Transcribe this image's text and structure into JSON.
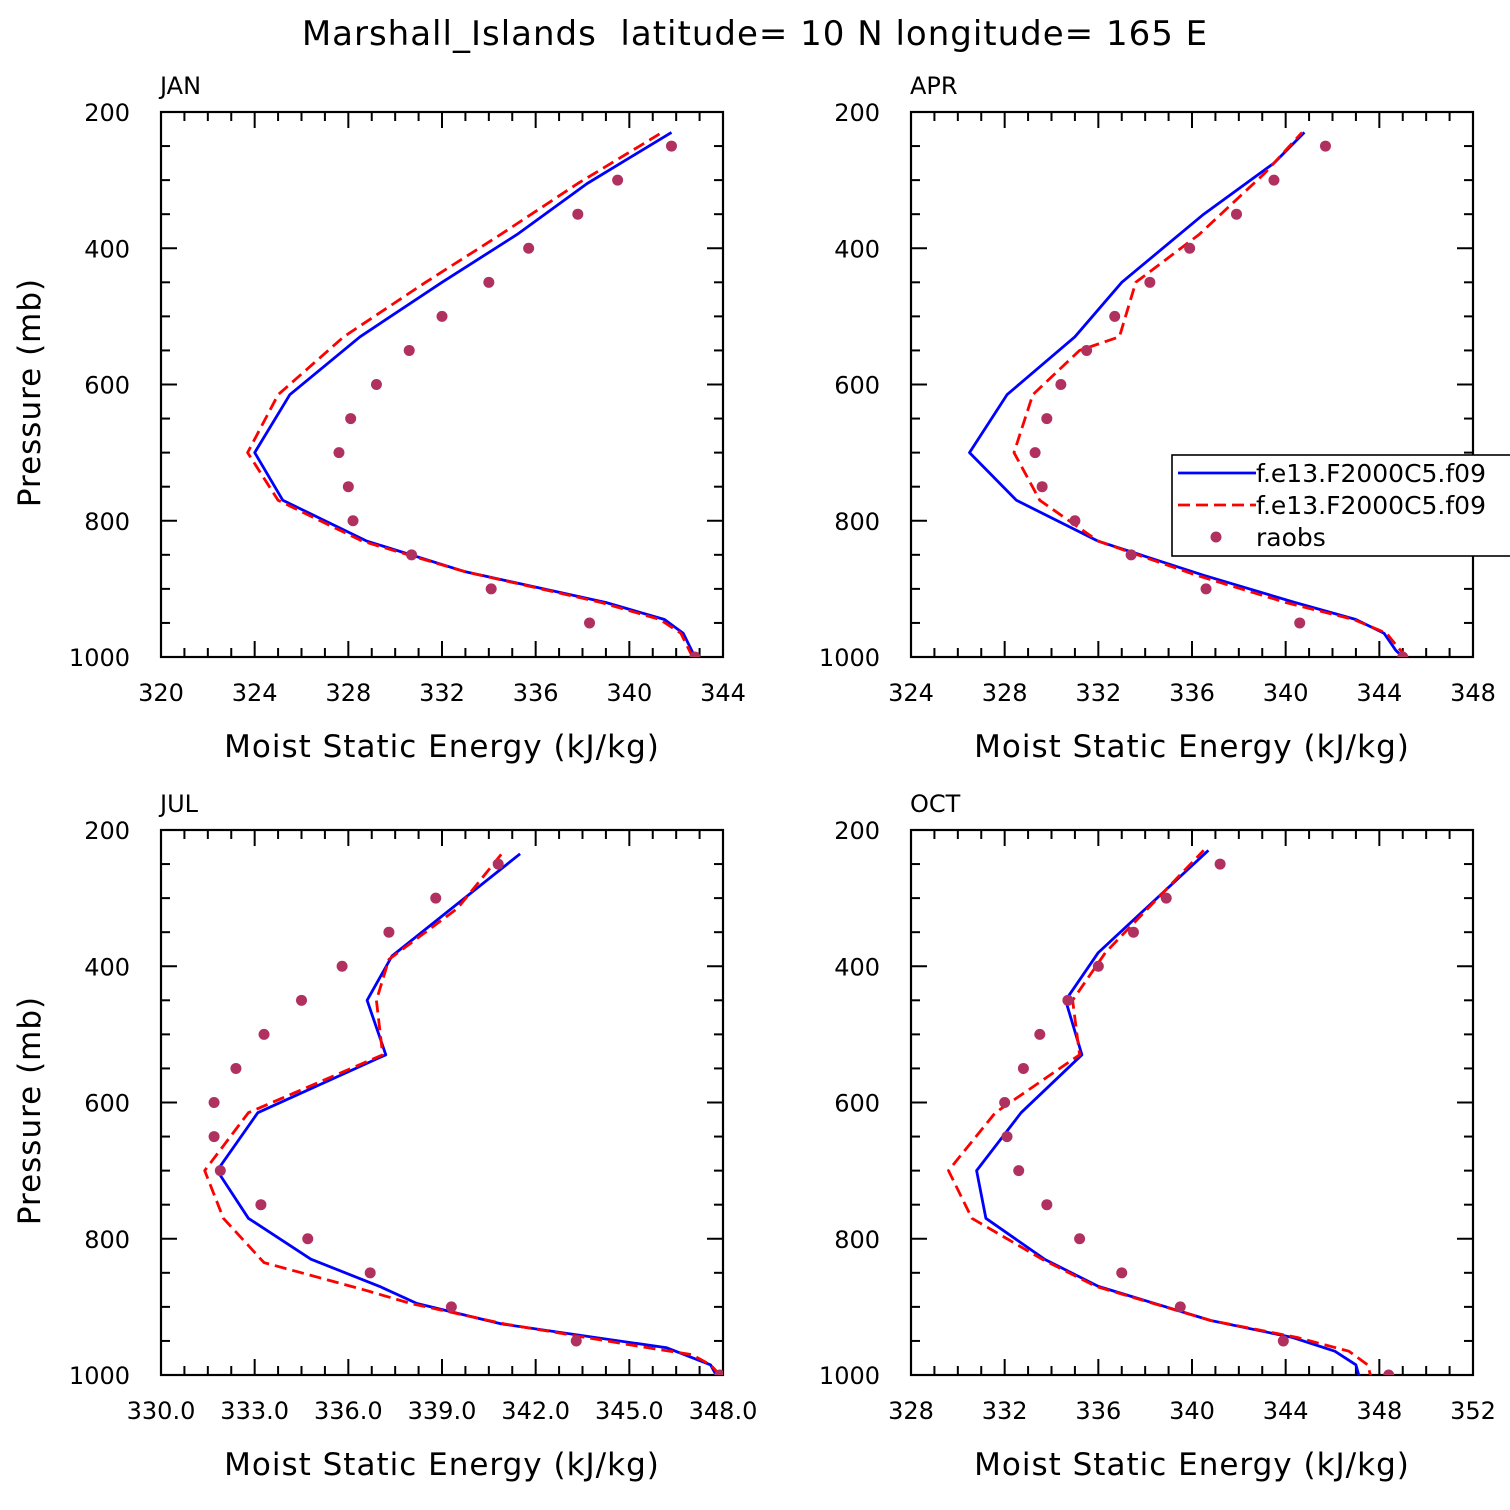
{
  "title": "Marshall_Islands  latitude= 10 N longitude= 165 E",
  "legend": {
    "entries": [
      {
        "label": "f.e13.F2000C5.f09",
        "style": "solid",
        "color": "#0000ff"
      },
      {
        "label": "f.e13.F2000C5.f09",
        "style": "dashed",
        "color": "#ff0000"
      },
      {
        "label": "raobs",
        "style": "marker",
        "color": "#b03060"
      }
    ]
  },
  "chart_data": [
    {
      "type": "line",
      "title": "JAN",
      "xlabel": "Moist Static Energy (kJ/kg)",
      "ylabel": "Pressure (mb)",
      "xlim": [
        320,
        344
      ],
      "ylim": [
        1000,
        200
      ],
      "xticks": [
        320,
        324,
        328,
        332,
        336,
        340,
        344
      ],
      "xtick_labels": [
        "320",
        "324",
        "328",
        "332",
        "336",
        "340",
        "344"
      ],
      "yticks": [
        200,
        400,
        600,
        800,
        1000
      ],
      "ytick_labels": [
        "200",
        "400",
        "600",
        "800",
        "1000"
      ],
      "series": [
        {
          "name": "f.e13.F2000C5.f09",
          "style": "solid",
          "color": "#0000ff",
          "x": [
            342.8,
            342.3,
            341.5,
            339.0,
            333.0,
            328.8,
            325.2,
            324.0,
            325.5,
            328.5,
            332.0,
            335.2,
            338.2,
            341.8
          ],
          "y": [
            1000,
            965,
            945,
            920,
            875,
            830,
            770,
            700,
            615,
            530,
            450,
            380,
            305,
            230
          ]
        },
        {
          "name": "f.e13.F2000C5.f09",
          "style": "dashed",
          "color": "#ff0000",
          "x": [
            342.7,
            342.2,
            341.3,
            338.8,
            333.0,
            328.6,
            325.0,
            323.7,
            325.0,
            327.8,
            331.3,
            334.5,
            337.8,
            341.4
          ],
          "y": [
            1000,
            965,
            945,
            920,
            875,
            830,
            770,
            700,
            615,
            530,
            450,
            380,
            305,
            230
          ]
        },
        {
          "name": "raobs",
          "style": "marker",
          "color": "#b03060",
          "x": [
            342.8,
            338.3,
            334.1,
            330.7,
            328.2,
            328.0,
            327.6,
            328.1,
            329.2,
            330.6,
            332.0,
            334.0,
            335.7,
            337.8,
            339.5,
            341.8
          ],
          "y": [
            1000,
            950,
            900,
            850,
            800,
            750,
            700,
            650,
            600,
            550,
            500,
            450,
            400,
            350,
            300,
            250
          ]
        }
      ]
    },
    {
      "type": "line",
      "title": "APR",
      "xlabel": "Moist Static Energy (kJ/kg)",
      "ylabel": "",
      "xlim": [
        324,
        348
      ],
      "ylim": [
        1000,
        200
      ],
      "xticks": [
        324,
        328,
        332,
        336,
        340,
        344,
        348
      ],
      "xtick_labels": [
        "324",
        "328",
        "332",
        "336",
        "340",
        "344",
        "348"
      ],
      "yticks": [
        200,
        400,
        600,
        800,
        1000
      ],
      "ytick_labels": [
        "200",
        "400",
        "600",
        "800",
        "1000"
      ],
      "series": [
        {
          "name": "f.e13.F2000C5.f09",
          "style": "solid",
          "color": "#0000ff",
          "x": [
            345.0,
            344.7,
            344.2,
            343.0,
            340.4,
            336.5,
            332.0,
            328.5,
            326.5,
            328.1,
            331.0,
            333.0,
            336.5,
            339.5,
            340.8
          ],
          "y": [
            1000,
            990,
            965,
            945,
            920,
            880,
            830,
            770,
            700,
            615,
            530,
            450,
            350,
            275,
            230
          ]
        },
        {
          "name": "f.e13.F2000C5.f09",
          "style": "dashed",
          "color": "#ff0000",
          "x": [
            345.2,
            344.9,
            344.3,
            342.9,
            340.0,
            336.2,
            332.0,
            329.5,
            328.4,
            329.2,
            331.2,
            332.9,
            333.6,
            336.3,
            339.1,
            340.7
          ],
          "y": [
            1000,
            990,
            965,
            945,
            920,
            880,
            830,
            770,
            700,
            615,
            550,
            530,
            450,
            380,
            290,
            230
          ]
        },
        {
          "name": "raobs",
          "style": "marker",
          "color": "#b03060",
          "x": [
            345.0,
            340.6,
            336.6,
            333.4,
            331.0,
            329.6,
            329.3,
            329.8,
            330.4,
            331.5,
            332.7,
            334.2,
            335.9,
            337.9,
            339.5,
            341.7
          ],
          "y": [
            1000,
            950,
            900,
            850,
            800,
            750,
            700,
            650,
            600,
            550,
            500,
            450,
            400,
            350,
            300,
            250
          ]
        }
      ]
    },
    {
      "type": "line",
      "title": "JUL",
      "xlabel": "Moist Static Energy (kJ/kg)",
      "ylabel": "Pressure (mb)",
      "xlim": [
        330,
        348
      ],
      "ylim": [
        1000,
        200
      ],
      "xticks": [
        330,
        333,
        336,
        339,
        342,
        345,
        348
      ],
      "xtick_labels": [
        "330.0",
        "333.0",
        "336.0",
        "339.0",
        "342.0",
        "345.0",
        "348.0"
      ],
      "yticks": [
        200,
        400,
        600,
        800,
        1000
      ],
      "ytick_labels": [
        "200",
        "400",
        "600",
        "800",
        "1000"
      ],
      "series": [
        {
          "name": "f.e13.F2000C5.f09",
          "style": "solid",
          "color": "#0000ff",
          "x": [
            347.9,
            347.6,
            346.2,
            340.9,
            338.2,
            337.0,
            334.8,
            332.8,
            331.8,
            333.1,
            337.2,
            336.6,
            337.4,
            341.5
          ],
          "y": [
            1010,
            985,
            960,
            925,
            895,
            870,
            830,
            770,
            700,
            615,
            530,
            450,
            385,
            235
          ]
        },
        {
          "name": "f.e13.F2000C5.f09",
          "style": "dashed",
          "color": "#ff0000",
          "x": [
            347.9,
            347.6,
            347.0,
            345.6,
            341.0,
            338.0,
            336.5,
            333.3,
            332.0,
            331.4,
            332.8,
            337.1,
            336.9,
            337.3,
            339.5,
            341.0
          ],
          "y": [
            1000,
            985,
            970,
            960,
            925,
            895,
            875,
            835,
            770,
            700,
            615,
            530,
            450,
            390,
            315,
            230
          ]
        },
        {
          "name": "raobs",
          "style": "marker",
          "color": "#b03060",
          "x": [
            347.9,
            343.3,
            339.3,
            336.7,
            334.7,
            333.2,
            331.9,
            331.7,
            331.7,
            332.4,
            333.3,
            334.5,
            335.8,
            337.3,
            338.8,
            340.8
          ],
          "y": [
            1000,
            950,
            900,
            850,
            800,
            750,
            700,
            650,
            600,
            550,
            500,
            450,
            400,
            350,
            300,
            250
          ]
        }
      ]
    },
    {
      "type": "line",
      "title": "OCT",
      "xlabel": "Moist Static Energy (kJ/kg)",
      "ylabel": "",
      "xlim": [
        328,
        352
      ],
      "ylim": [
        1000,
        200
      ],
      "xticks": [
        328,
        332,
        336,
        340,
        344,
        348,
        352
      ],
      "xtick_labels": [
        "328",
        "332",
        "336",
        "340",
        "344",
        "348",
        "352"
      ],
      "yticks": [
        200,
        400,
        600,
        800,
        1000
      ],
      "ytick_labels": [
        "200",
        "400",
        "600",
        "800",
        "1000"
      ],
      "series": [
        {
          "name": "f.e13.F2000C5.f09",
          "style": "solid",
          "color": "#0000ff",
          "x": [
            347.2,
            347.0,
            346.1,
            344.3,
            340.8,
            336.0,
            333.7,
            331.2,
            330.8,
            332.7,
            335.3,
            334.6,
            336.0,
            340.7
          ],
          "y": [
            1010,
            985,
            965,
            945,
            920,
            870,
            830,
            770,
            700,
            615,
            530,
            450,
            380,
            230
          ]
        },
        {
          "name": "f.e13.F2000C5.f09",
          "style": "dashed",
          "color": "#ff0000",
          "x": [
            347.7,
            347.5,
            346.7,
            344.5,
            340.8,
            335.9,
            333.6,
            330.6,
            329.6,
            331.6,
            335.2,
            334.9,
            336.3,
            340.5
          ],
          "y": [
            1010,
            985,
            965,
            945,
            920,
            870,
            830,
            770,
            700,
            615,
            530,
            450,
            380,
            230
          ]
        },
        {
          "name": "raobs",
          "style": "marker",
          "color": "#b03060",
          "x": [
            348.4,
            343.9,
            339.5,
            337.0,
            335.2,
            333.8,
            332.6,
            332.1,
            332.0,
            332.8,
            333.5,
            334.7,
            336.0,
            337.5,
            338.9,
            341.2
          ],
          "y": [
            1000,
            950,
            900,
            850,
            800,
            750,
            700,
            650,
            600,
            550,
            500,
            450,
            400,
            350,
            300,
            250
          ]
        }
      ]
    }
  ]
}
